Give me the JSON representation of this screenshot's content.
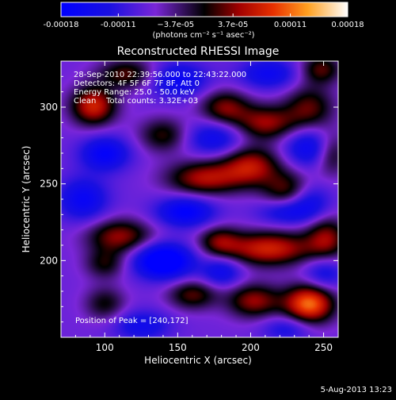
{
  "colorbar": {
    "tick_labels": [
      "-0.00018",
      "-0.00011",
      "−3.7e-05",
      "3.7e-05",
      "0.00011",
      "0.00018"
    ],
    "unit_label": "(photons cm⁻² s⁻¹ asec⁻²)",
    "range": [
      -0.00018,
      0.00018
    ]
  },
  "chart": {
    "title": "Reconstructed RHESSI Image",
    "xlabel": "Heliocentric X (arcsec)",
    "ylabel": "Heliocentric Y (arcsec)",
    "info_lines": [
      "28-Sep-2010 22:39:56.000 to 22:43:22.000",
      "Detectors: 4F 5F 6F 7F 8F, Att 0",
      "Energy Range: 25.0 - 50.0 keV",
      "Clean    Total counts: 3.32E+03"
    ],
    "peak_label": "Position of Peak = [240,172]"
  },
  "footer": {
    "timestamp": "5-Aug-2013 13:23"
  },
  "chart_data": {
    "type": "heatmap",
    "title": "Reconstructed RHESSI Image",
    "xlabel": "Heliocentric X (arcsec)",
    "ylabel": "Heliocentric Y (arcsec)",
    "xlim": [
      70,
      260
    ],
    "ylim": [
      150,
      330
    ],
    "x_ticks": [
      100,
      150,
      200,
      250
    ],
    "y_ticks": [
      200,
      250,
      300
    ],
    "color_range": [
      -0.00018,
      0.00018
    ],
    "peak_position": [
      240,
      172
    ],
    "blobs": [
      {
        "x": 240,
        "y": 172,
        "amp": 0.00018,
        "sx": 12,
        "sy": 9
      },
      {
        "x": 202,
        "y": 174,
        "amp": 0.00011,
        "sx": 13,
        "sy": 8
      },
      {
        "x": 160,
        "y": 178,
        "amp": 9e-05,
        "sx": 12,
        "sy": 7
      },
      {
        "x": 100,
        "y": 172,
        "amp": 7e-05,
        "sx": 10,
        "sy": 8
      },
      {
        "x": 212,
        "y": 208,
        "amp": 0.00014,
        "sx": 22,
        "sy": 8
      },
      {
        "x": 252,
        "y": 215,
        "amp": 0.0001,
        "sx": 10,
        "sy": 10
      },
      {
        "x": 110,
        "y": 216,
        "amp": 0.00011,
        "sx": 16,
        "sy": 8
      },
      {
        "x": 178,
        "y": 213,
        "amp": 8e-05,
        "sx": 10,
        "sy": 7
      },
      {
        "x": 100,
        "y": 198,
        "amp": 7e-05,
        "sx": 10,
        "sy": 7
      },
      {
        "x": 168,
        "y": 254,
        "amp": 0.00012,
        "sx": 18,
        "sy": 8
      },
      {
        "x": 200,
        "y": 262,
        "amp": 0.00012,
        "sx": 14,
        "sy": 9
      },
      {
        "x": 225,
        "y": 246,
        "amp": 9e-05,
        "sx": 12,
        "sy": 9
      },
      {
        "x": 210,
        "y": 290,
        "amp": 0.00011,
        "sx": 15,
        "sy": 8
      },
      {
        "x": 182,
        "y": 300,
        "amp": 0.0001,
        "sx": 12,
        "sy": 8
      },
      {
        "x": 92,
        "y": 301,
        "amp": 0.00014,
        "sx": 11,
        "sy": 9
      },
      {
        "x": 115,
        "y": 322,
        "amp": 9e-05,
        "sx": 14,
        "sy": 7
      },
      {
        "x": 140,
        "y": 282,
        "amp": 8e-05,
        "sx": 12,
        "sy": 8
      },
      {
        "x": 240,
        "y": 300,
        "amp": 9e-05,
        "sx": 12,
        "sy": 10
      },
      {
        "x": 255,
        "y": 270,
        "amp": 8e-05,
        "sx": 8,
        "sy": 10
      },
      {
        "x": 248,
        "y": 325,
        "amp": 9e-05,
        "sx": 10,
        "sy": 7
      },
      {
        "x": 100,
        "y": 270,
        "amp": -0.0001,
        "sx": 12,
        "sy": 8
      },
      {
        "x": 140,
        "y": 200,
        "amp": -0.00016,
        "sx": 14,
        "sy": 8
      },
      {
        "x": 155,
        "y": 232,
        "amp": -0.00011,
        "sx": 14,
        "sy": 7
      },
      {
        "x": 85,
        "y": 240,
        "amp": -9e-05,
        "sx": 12,
        "sy": 10
      },
      {
        "x": 175,
        "y": 280,
        "amp": -8e-05,
        "sx": 14,
        "sy": 8
      },
      {
        "x": 240,
        "y": 274,
        "amp": -9e-05,
        "sx": 12,
        "sy": 9
      },
      {
        "x": 225,
        "y": 232,
        "amp": -8e-05,
        "sx": 14,
        "sy": 6
      },
      {
        "x": 150,
        "y": 318,
        "amp": -9e-05,
        "sx": 14,
        "sy": 8
      },
      {
        "x": 212,
        "y": 322,
        "amp": -8e-05,
        "sx": 14,
        "sy": 7
      },
      {
        "x": 180,
        "y": 193,
        "amp": -8e-05,
        "sx": 10,
        "sy": 7
      },
      {
        "x": 250,
        "y": 192,
        "amp": -7e-05,
        "sx": 10,
        "sy": 8
      },
      {
        "x": 125,
        "y": 158,
        "amp": -7e-05,
        "sx": 14,
        "sy": 7
      },
      {
        "x": 225,
        "y": 156,
        "amp": -6e-05,
        "sx": 12,
        "sy": 6
      },
      {
        "x": 240,
        "y": 240,
        "amp": -7e-05,
        "sx": 10,
        "sy": 8
      }
    ]
  }
}
